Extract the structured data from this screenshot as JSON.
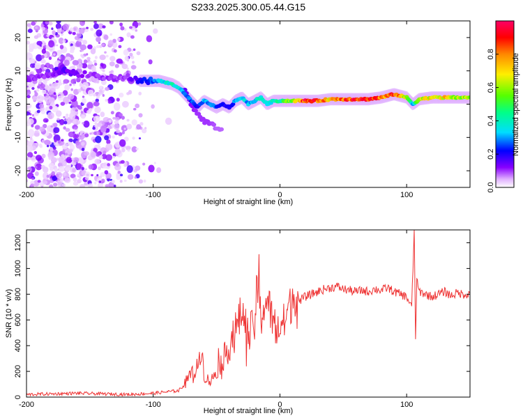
{
  "title": "S233.2025.300.05.44.G15",
  "colors": {
    "snr_line": "#ee3333",
    "ridge_low": "#4411dd",
    "scatter": "#9966ee"
  },
  "chart_data": [
    {
      "type": "heatmap",
      "name": "spectrogram",
      "xlabel": "Height of straight line (km)",
      "ylabel": "Frequency (Hz)",
      "xlim": [
        -200,
        150
      ],
      "ylim": [
        -25,
        25
      ],
      "xticks": [
        -200,
        -100,
        0,
        100
      ],
      "xtick_labels": [
        "-200",
        "-100",
        "0",
        "100"
      ],
      "yticks": [
        -20,
        -10,
        0,
        10,
        20
      ],
      "ytick_labels": [
        "-20",
        "-10",
        "0",
        "10",
        "20"
      ],
      "ridge": {
        "x": [
          -195,
          -180,
          -170,
          -160,
          -150,
          -140,
          -130,
          -120,
          -110,
          -100,
          -95,
          -90,
          -85,
          -80,
          -75,
          -70,
          -65,
          -60,
          -55,
          -50,
          -45,
          -40,
          -35,
          -30,
          -25,
          -20,
          -15,
          -10,
          -5,
          0,
          10,
          20,
          30,
          40,
          50,
          60,
          70,
          80,
          90,
          100,
          105,
          110,
          120,
          130,
          140,
          150
        ],
        "freq": [
          8,
          9,
          10,
          9,
          9,
          8,
          8,
          8,
          7,
          7,
          7,
          6.5,
          6,
          5,
          3,
          1,
          -1,
          1,
          0,
          -1,
          0,
          -1,
          1,
          2,
          0,
          1,
          2,
          0,
          1,
          1,
          1,
          1,
          1,
          1.5,
          1.5,
          1.5,
          1.5,
          2,
          3,
          2,
          0,
          1.5,
          2,
          2,
          2,
          2
        ],
        "amplitude": [
          0.1,
          0.1,
          0.15,
          0.12,
          0.1,
          0.1,
          0.1,
          0.1,
          0.2,
          0.25,
          0.3,
          0.35,
          0.4,
          0.35,
          0.3,
          0.25,
          0.2,
          0.3,
          0.3,
          0.25,
          0.2,
          0.2,
          0.3,
          0.35,
          0.3,
          0.35,
          0.4,
          0.35,
          0.4,
          0.45,
          0.6,
          0.9,
          0.85,
          0.7,
          0.8,
          0.9,
          0.85,
          0.8,
          0.85,
          0.6,
          0.3,
          0.6,
          0.7,
          0.7,
          0.6,
          0.6
        ]
      },
      "branch": {
        "x": [
          -75,
          -70,
          -65,
          -60,
          -55,
          -50,
          -45
        ],
        "freq": [
          4,
          0,
          -3,
          -5,
          -6,
          -7,
          -8
        ],
        "amplitude": [
          0.15,
          0.12,
          0.1,
          0.1,
          0.1,
          0.08,
          0.08
        ]
      }
    },
    {
      "type": "line",
      "name": "snr",
      "xlabel": "Height of straight line (km)",
      "ylabel": "SNR (10 * v/v)",
      "xlim": [
        -200,
        150
      ],
      "ylim": [
        0,
        1300
      ],
      "xticks": [
        -200,
        -100,
        0,
        100
      ],
      "xtick_labels": [
        "-200",
        "-100",
        "0",
        "100"
      ],
      "yticks": [
        0,
        200,
        400,
        600,
        800,
        1000,
        1200
      ],
      "ytick_labels": [
        "0",
        "200",
        "400",
        "600",
        "800",
        "1000",
        "1200"
      ],
      "series": [
        {
          "name": "SNR",
          "x": [
            -200,
            -180,
            -160,
            -140,
            -120,
            -100,
            -90,
            -80,
            -75,
            -70,
            -65,
            -62,
            -60,
            -55,
            -50,
            -45,
            -40,
            -35,
            -30,
            -25,
            -20,
            -18,
            -15,
            -10,
            -5,
            0,
            5,
            10,
            15,
            20,
            25,
            30,
            35,
            40,
            45,
            50,
            55,
            60,
            65,
            70,
            75,
            80,
            85,
            90,
            95,
            100,
            104,
            106,
            107,
            108,
            110,
            115,
            120,
            125,
            130,
            135,
            140,
            145,
            150
          ],
          "y": [
            20,
            25,
            30,
            25,
            20,
            30,
            40,
            50,
            100,
            150,
            200,
            360,
            150,
            100,
            180,
            250,
            350,
            450,
            600,
            400,
            500,
            800,
            550,
            700,
            500,
            450,
            550,
            700,
            750,
            780,
            800,
            820,
            840,
            850,
            860,
            840,
            830,
            820,
            830,
            820,
            840,
            830,
            850,
            820,
            800,
            780,
            700,
            1300,
            450,
            900,
            820,
            800,
            780,
            800,
            820,
            790,
            810,
            800,
            800
          ]
        }
      ]
    },
    {
      "type": "colorbar",
      "name": "amplitude-colorbar",
      "label": "Normalized spectral amplitude",
      "range": [
        0,
        1
      ],
      "ticks": [
        0.0,
        0.2,
        0.4,
        0.6,
        0.8
      ],
      "tick_labels": [
        "0.0",
        "0.2",
        "0.4",
        "0.6",
        "0.8"
      ],
      "stops": [
        "#ffffff",
        "#dd88ff",
        "#7700ff",
        "#0000ff",
        "#00ddff",
        "#00ff66",
        "#66ff00",
        "#ffee00",
        "#ff7700",
        "#ff0000",
        "#ff0066"
      ]
    }
  ]
}
